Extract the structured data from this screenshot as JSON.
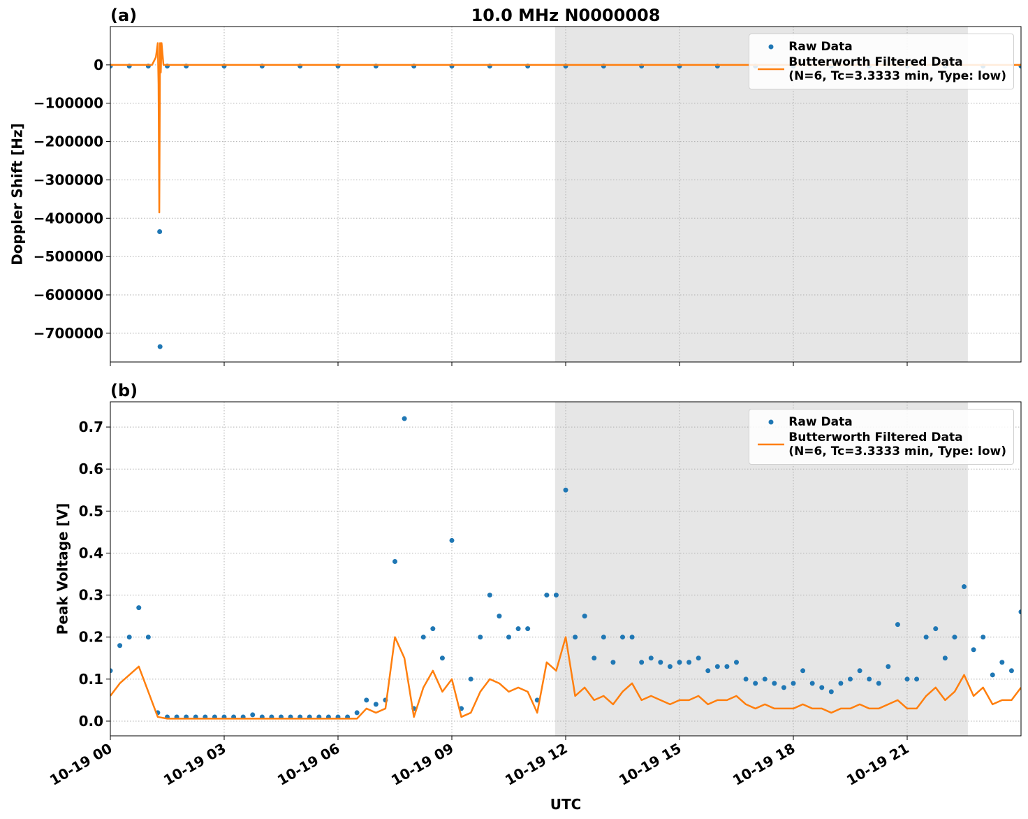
{
  "chart_data": [
    {
      "type": "line",
      "title": "10.0 MHz N0000008",
      "panel_label": "(a)",
      "ylabel": "Doppler Shift [Hz]",
      "xlim": [
        0,
        24
      ],
      "xticks": [
        0,
        3,
        6,
        9,
        12,
        15,
        18,
        21
      ],
      "ylim": [
        -775000,
        100000
      ],
      "yticks": [
        0,
        {
          "value": -100000,
          "label": "−100000"
        },
        {
          "value": -200000,
          "label": "−200000"
        },
        {
          "value": -300000,
          "label": "−300000"
        },
        {
          "value": -400000,
          "label": "−400000"
        },
        {
          "value": -500000,
          "label": "−500000"
        },
        {
          "value": -600000,
          "label": "−600000"
        },
        {
          "value": -700000,
          "label": "−700000"
        }
      ],
      "grid": true,
      "legend": "upper right",
      "shaded_span": [
        11.72,
        22.6
      ],
      "series": [
        {
          "name": "Raw Data",
          "mode": "markers",
          "color": "#1f77b4",
          "x": [
            0,
            0.5,
            1,
            1.3,
            1.31,
            1.5,
            2,
            3,
            4,
            5,
            6,
            7,
            8,
            9,
            10,
            11,
            12,
            13,
            14,
            15,
            16,
            17,
            18,
            19,
            20,
            21,
            22,
            23,
            24
          ],
          "values": [
            -3000,
            -3000,
            -3000,
            -435000,
            -735000,
            -3000,
            -3000,
            -3000,
            -3000,
            -3000,
            -3000,
            -3000,
            -3000,
            -3000,
            -3000,
            -3000,
            -3000,
            -3000,
            -3000,
            -3000,
            -3000,
            -3000,
            -3000,
            -3000,
            -3000,
            -3000,
            -3000,
            -3000,
            -3000
          ]
        },
        {
          "name": "Butterworth Filtered Data\n(N=6, Tc=3.3333 min, Type: low)",
          "mode": "lines",
          "color": "#ff7f0e",
          "x": [
            0,
            1.1,
            1.2,
            1.25,
            1.27,
            1.29,
            1.31,
            1.33,
            1.35,
            1.4,
            1.5,
            24
          ],
          "values": [
            0,
            0,
            20000,
            57000,
            -50000,
            -385000,
            57000,
            -20000,
            57000,
            0,
            0,
            0
          ]
        }
      ]
    },
    {
      "type": "line",
      "panel_label": "(b)",
      "ylabel": "Peak Voltage [V]",
      "xlabel": "UTC",
      "xlim": [
        0,
        24
      ],
      "xticks": [
        {
          "value": 0,
          "label": "10-19 00"
        },
        {
          "value": 3,
          "label": "10-19 03"
        },
        {
          "value": 6,
          "label": "10-19 06"
        },
        {
          "value": 9,
          "label": "10-19 09"
        },
        {
          "value": 12,
          "label": "10-19 12"
        },
        {
          "value": 15,
          "label": "10-19 15"
        },
        {
          "value": 18,
          "label": "10-19 18"
        },
        {
          "value": 21,
          "label": "10-19 21"
        }
      ],
      "ylim": [
        -0.035,
        0.76
      ],
      "yticks": [
        {
          "value": 0,
          "label": "0.0"
        },
        0.1,
        0.2,
        0.3,
        0.4,
        0.5,
        0.6,
        0.7
      ],
      "grid": true,
      "legend": "upper right",
      "shaded_span": [
        11.72,
        22.6
      ],
      "x": [
        0,
        0.25,
        0.5,
        0.75,
        1,
        1.25,
        1.5,
        1.75,
        2,
        2.25,
        2.5,
        2.75,
        3,
        3.25,
        3.5,
        3.75,
        4,
        4.25,
        4.5,
        4.75,
        5,
        5.25,
        5.5,
        5.75,
        6,
        6.25,
        6.5,
        6.75,
        7,
        7.25,
        7.5,
        7.75,
        8,
        8.25,
        8.5,
        8.75,
        9,
        9.25,
        9.5,
        9.75,
        10,
        10.25,
        10.5,
        10.75,
        11,
        11.25,
        11.5,
        11.75,
        12,
        12.25,
        12.5,
        12.75,
        13,
        13.25,
        13.5,
        13.75,
        14,
        14.25,
        14.5,
        14.75,
        15,
        15.25,
        15.5,
        15.75,
        16,
        16.25,
        16.5,
        16.75,
        17,
        17.25,
        17.5,
        17.75,
        18,
        18.25,
        18.5,
        18.75,
        19,
        19.25,
        19.5,
        19.75,
        20,
        20.25,
        20.5,
        20.75,
        21,
        21.25,
        21.5,
        21.75,
        22,
        22.25,
        22.5,
        22.75,
        23,
        23.25,
        23.5,
        23.75,
        24
      ],
      "series": [
        {
          "name": "Raw Data",
          "mode": "markers",
          "color": "#1f77b4",
          "values": [
            0.12,
            0.18,
            0.2,
            0.27,
            0.2,
            0.02,
            0.01,
            0.01,
            0.01,
            0.01,
            0.01,
            0.01,
            0.01,
            0.01,
            0.01,
            0.015,
            0.01,
            0.01,
            0.01,
            0.01,
            0.01,
            0.01,
            0.01,
            0.01,
            0.01,
            0.01,
            0.02,
            0.05,
            0.04,
            0.05,
            0.38,
            0.72,
            0.03,
            0.2,
            0.22,
            0.15,
            0.43,
            0.03,
            0.1,
            0.2,
            0.3,
            0.25,
            0.2,
            0.22,
            0.22,
            0.05,
            0.3,
            0.3,
            0.55,
            0.2,
            0.25,
            0.15,
            0.2,
            0.14,
            0.2,
            0.2,
            0.14,
            0.15,
            0.14,
            0.13,
            0.14,
            0.14,
            0.15,
            0.12,
            0.13,
            0.13,
            0.14,
            0.1,
            0.09,
            0.1,
            0.09,
            0.08,
            0.09,
            0.12,
            0.09,
            0.08,
            0.07,
            0.09,
            0.1,
            0.12,
            0.1,
            0.09,
            0.13,
            0.23,
            0.1,
            0.1,
            0.2,
            0.22,
            0.15,
            0.2,
            0.32,
            0.17,
            0.2,
            0.11,
            0.14,
            0.12,
            0.26
          ]
        },
        {
          "name": "Butterworth Filtered Data\n(N=6, Tc=3.3333 min, Type: low)",
          "mode": "lines",
          "color": "#ff7f0e",
          "values": [
            0.06,
            0.09,
            0.11,
            0.13,
            0.07,
            0.01,
            0.006,
            0.006,
            0.006,
            0.006,
            0.006,
            0.006,
            0.006,
            0.006,
            0.006,
            0.006,
            0.006,
            0.006,
            0.006,
            0.006,
            0.006,
            0.006,
            0.006,
            0.006,
            0.006,
            0.006,
            0.006,
            0.03,
            0.02,
            0.03,
            0.2,
            0.15,
            0.01,
            0.08,
            0.12,
            0.07,
            0.1,
            0.01,
            0.02,
            0.07,
            0.1,
            0.09,
            0.07,
            0.08,
            0.07,
            0.02,
            0.14,
            0.12,
            0.2,
            0.06,
            0.08,
            0.05,
            0.06,
            0.04,
            0.07,
            0.09,
            0.05,
            0.06,
            0.05,
            0.04,
            0.05,
            0.05,
            0.06,
            0.04,
            0.05,
            0.05,
            0.06,
            0.04,
            0.03,
            0.04,
            0.03,
            0.03,
            0.03,
            0.04,
            0.03,
            0.03,
            0.02,
            0.03,
            0.03,
            0.04,
            0.03,
            0.03,
            0.04,
            0.05,
            0.03,
            0.03,
            0.06,
            0.08,
            0.05,
            0.07,
            0.11,
            0.06,
            0.08,
            0.04,
            0.05,
            0.05,
            0.08
          ]
        }
      ]
    }
  ]
}
